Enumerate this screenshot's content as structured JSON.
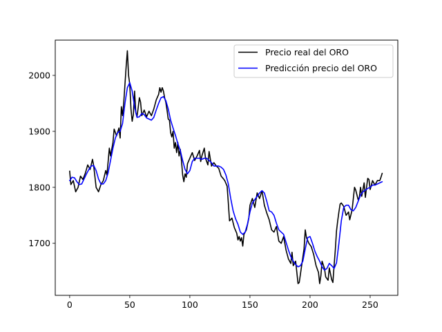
{
  "chart_data": {
    "type": "line",
    "title": "",
    "xlabel": "",
    "ylabel": "",
    "xlim": [
      -12,
      273
    ],
    "ylim": [
      1607,
      2063
    ],
    "x_ticks": [
      0,
      50,
      100,
      150,
      200,
      250
    ],
    "y_ticks": [
      1700,
      1800,
      1900,
      2000
    ],
    "grid": false,
    "legend_position": "top-right",
    "series": [
      {
        "name": "Precio real del ORO",
        "color": "#000000",
        "points": [
          [
            0,
            1829
          ],
          [
            1,
            1805
          ],
          [
            3,
            1812
          ],
          [
            5,
            1792
          ],
          [
            7,
            1800
          ],
          [
            9,
            1820
          ],
          [
            11,
            1814
          ],
          [
            13,
            1825
          ],
          [
            15,
            1840
          ],
          [
            17,
            1832
          ],
          [
            19,
            1850
          ],
          [
            20,
            1838
          ],
          [
            22,
            1800
          ],
          [
            24,
            1792
          ],
          [
            26,
            1805
          ],
          [
            28,
            1812
          ],
          [
            30,
            1830
          ],
          [
            31,
            1822
          ],
          [
            33,
            1870
          ],
          [
            34,
            1856
          ],
          [
            36,
            1880
          ],
          [
            37,
            1904
          ],
          [
            39,
            1892
          ],
          [
            41,
            1906
          ],
          [
            42,
            1888
          ],
          [
            43,
            1944
          ],
          [
            44,
            1928
          ],
          [
            45,
            1952
          ],
          [
            46,
            1984
          ],
          [
            47,
            2016
          ],
          [
            48,
            2044
          ],
          [
            49,
            2000
          ],
          [
            50,
            1984
          ],
          [
            51,
            1940
          ],
          [
            52,
            1918
          ],
          [
            53,
            1930
          ],
          [
            54,
            1972
          ],
          [
            55,
            1934
          ],
          [
            56,
            1926
          ],
          [
            57,
            1942
          ],
          [
            58,
            1960
          ],
          [
            59,
            1952
          ],
          [
            60,
            1928
          ],
          [
            62,
            1938
          ],
          [
            64,
            1926
          ],
          [
            66,
            1936
          ],
          [
            68,
            1928
          ],
          [
            70,
            1940
          ],
          [
            72,
            1956
          ],
          [
            74,
            1966
          ],
          [
            75,
            1978
          ],
          [
            76,
            1970
          ],
          [
            77,
            1978
          ],
          [
            78,
            1972
          ],
          [
            79,
            1960
          ],
          [
            80,
            1952
          ],
          [
            81,
            1938
          ],
          [
            82,
            1922
          ],
          [
            83,
            1920
          ],
          [
            84,
            1898
          ],
          [
            85,
            1890
          ],
          [
            86,
            1900
          ],
          [
            87,
            1870
          ],
          [
            88,
            1880
          ],
          [
            89,
            1862
          ],
          [
            90,
            1880
          ],
          [
            91,
            1856
          ],
          [
            92,
            1868
          ],
          [
            93,
            1848
          ],
          [
            94,
            1822
          ],
          [
            95,
            1810
          ],
          [
            96,
            1824
          ],
          [
            97,
            1818
          ],
          [
            98,
            1842
          ],
          [
            100,
            1852
          ],
          [
            102,
            1862
          ],
          [
            104,
            1848
          ],
          [
            106,
            1856
          ],
          [
            108,
            1866
          ],
          [
            109,
            1846
          ],
          [
            110,
            1856
          ],
          [
            112,
            1870
          ],
          [
            113,
            1852
          ],
          [
            115,
            1840
          ],
          [
            116,
            1864
          ],
          [
            118,
            1838
          ],
          [
            120,
            1844
          ],
          [
            122,
            1838
          ],
          [
            124,
            1834
          ],
          [
            126,
            1820
          ],
          [
            128,
            1815
          ],
          [
            129,
            1812
          ],
          [
            131,
            1802
          ],
          [
            132,
            1772
          ],
          [
            133,
            1740
          ],
          [
            135,
            1745
          ],
          [
            137,
            1728
          ],
          [
            139,
            1718
          ],
          [
            140,
            1706
          ],
          [
            141,
            1712
          ],
          [
            142,
            1704
          ],
          [
            143,
            1710
          ],
          [
            144,
            1695
          ],
          [
            145,
            1716
          ],
          [
            147,
            1724
          ],
          [
            149,
            1744
          ],
          [
            150,
            1768
          ],
          [
            152,
            1780
          ],
          [
            154,
            1764
          ],
          [
            156,
            1790
          ],
          [
            158,
            1780
          ],
          [
            160,
            1794
          ],
          [
            162,
            1768
          ],
          [
            164,
            1754
          ],
          [
            166,
            1742
          ],
          [
            168,
            1724
          ],
          [
            170,
            1720
          ],
          [
            172,
            1730
          ],
          [
            174,
            1704
          ],
          [
            176,
            1700
          ],
          [
            178,
            1712
          ],
          [
            180,
            1688
          ],
          [
            182,
            1672
          ],
          [
            184,
            1664
          ],
          [
            185,
            1684
          ],
          [
            186,
            1660
          ],
          [
            188,
            1668
          ],
          [
            190,
            1628
          ],
          [
            191,
            1630
          ],
          [
            193,
            1660
          ],
          [
            195,
            1690
          ],
          [
            196,
            1724
          ],
          [
            197,
            1710
          ],
          [
            199,
            1700
          ],
          [
            201,
            1694
          ],
          [
            203,
            1680
          ],
          [
            205,
            1660
          ],
          [
            207,
            1648
          ],
          [
            208,
            1628
          ],
          [
            209,
            1642
          ],
          [
            210,
            1668
          ],
          [
            212,
            1655
          ],
          [
            213,
            1640
          ],
          [
            215,
            1634
          ],
          [
            216,
            1656
          ],
          [
            218,
            1635
          ],
          [
            219,
            1630
          ],
          [
            220,
            1660
          ],
          [
            221,
            1688
          ],
          [
            222,
            1722
          ],
          [
            223,
            1740
          ],
          [
            224,
            1756
          ],
          [
            225,
            1770
          ],
          [
            226,
            1772
          ],
          [
            228,
            1766
          ],
          [
            230,
            1750
          ],
          [
            232,
            1756
          ],
          [
            233,
            1742
          ],
          [
            235,
            1760
          ],
          [
            237,
            1800
          ],
          [
            238,
            1795
          ],
          [
            240,
            1778
          ],
          [
            241,
            1782
          ],
          [
            242,
            1800
          ],
          [
            243,
            1784
          ],
          [
            244,
            1796
          ],
          [
            245,
            1808
          ],
          [
            246,
            1782
          ],
          [
            247,
            1800
          ],
          [
            248,
            1816
          ],
          [
            249,
            1814
          ],
          [
            250,
            1796
          ],
          [
            252,
            1812
          ],
          [
            254,
            1804
          ],
          [
            256,
            1812
          ],
          [
            258,
            1812
          ],
          [
            259,
            1818
          ],
          [
            260,
            1825
          ]
        ]
      },
      {
        "name": "Predicción precio del ORO",
        "color": "#0000ff",
        "points": [
          [
            0,
            1812
          ],
          [
            2,
            1818
          ],
          [
            4,
            1817
          ],
          [
            6,
            1810
          ],
          [
            8,
            1805
          ],
          [
            10,
            1806
          ],
          [
            12,
            1815
          ],
          [
            14,
            1824
          ],
          [
            16,
            1832
          ],
          [
            18,
            1838
          ],
          [
            20,
            1839
          ],
          [
            22,
            1830
          ],
          [
            24,
            1815
          ],
          [
            26,
            1806
          ],
          [
            28,
            1806
          ],
          [
            30,
            1812
          ],
          [
            32,
            1826
          ],
          [
            34,
            1848
          ],
          [
            36,
            1870
          ],
          [
            38,
            1888
          ],
          [
            40,
            1898
          ],
          [
            42,
            1900
          ],
          [
            44,
            1914
          ],
          [
            46,
            1950
          ],
          [
            48,
            1978
          ],
          [
            50,
            1987
          ],
          [
            52,
            1972
          ],
          [
            54,
            1944
          ],
          [
            56,
            1925
          ],
          [
            58,
            1926
          ],
          [
            60,
            1932
          ],
          [
            62,
            1930
          ],
          [
            64,
            1924
          ],
          [
            66,
            1922
          ],
          [
            68,
            1920
          ],
          [
            70,
            1925
          ],
          [
            72,
            1938
          ],
          [
            74,
            1950
          ],
          [
            76,
            1960
          ],
          [
            78,
            1962
          ],
          [
            80,
            1955
          ],
          [
            82,
            1940
          ],
          [
            84,
            1920
          ],
          [
            86,
            1906
          ],
          [
            88,
            1893
          ],
          [
            90,
            1878
          ],
          [
            92,
            1866
          ],
          [
            94,
            1848
          ],
          [
            96,
            1832
          ],
          [
            98,
            1824
          ],
          [
            100,
            1830
          ],
          [
            102,
            1846
          ],
          [
            104,
            1852
          ],
          [
            106,
            1852
          ],
          [
            108,
            1852
          ],
          [
            110,
            1850
          ],
          [
            112,
            1852
          ],
          [
            114,
            1852
          ],
          [
            116,
            1848
          ],
          [
            118,
            1844
          ],
          [
            120,
            1838
          ],
          [
            122,
            1838
          ],
          [
            124,
            1838
          ],
          [
            126,
            1836
          ],
          [
            128,
            1832
          ],
          [
            130,
            1822
          ],
          [
            132,
            1806
          ],
          [
            134,
            1780
          ],
          [
            136,
            1758
          ],
          [
            138,
            1744
          ],
          [
            140,
            1734
          ],
          [
            142,
            1720
          ],
          [
            144,
            1716
          ],
          [
            146,
            1720
          ],
          [
            148,
            1735
          ],
          [
            150,
            1756
          ],
          [
            152,
            1772
          ],
          [
            154,
            1778
          ],
          [
            156,
            1784
          ],
          [
            158,
            1790
          ],
          [
            160,
            1794
          ],
          [
            162,
            1790
          ],
          [
            164,
            1775
          ],
          [
            166,
            1758
          ],
          [
            168,
            1756
          ],
          [
            170,
            1750
          ],
          [
            172,
            1736
          ],
          [
            174,
            1724
          ],
          [
            176,
            1720
          ],
          [
            178,
            1716
          ],
          [
            180,
            1702
          ],
          [
            182,
            1688
          ],
          [
            184,
            1676
          ],
          [
            186,
            1668
          ],
          [
            188,
            1662
          ],
          [
            190,
            1658
          ],
          [
            192,
            1660
          ],
          [
            194,
            1668
          ],
          [
            196,
            1690
          ],
          [
            198,
            1710
          ],
          [
            200,
            1712
          ],
          [
            202,
            1700
          ],
          [
            204,
            1686
          ],
          [
            206,
            1676
          ],
          [
            208,
            1668
          ],
          [
            210,
            1658
          ],
          [
            212,
            1652
          ],
          [
            214,
            1655
          ],
          [
            216,
            1664
          ],
          [
            218,
            1660
          ],
          [
            220,
            1655
          ],
          [
            222,
            1665
          ],
          [
            224,
            1700
          ],
          [
            226,
            1740
          ],
          [
            228,
            1764
          ],
          [
            230,
            1768
          ],
          [
            232,
            1768
          ],
          [
            234,
            1760
          ],
          [
            236,
            1758
          ],
          [
            238,
            1764
          ],
          [
            240,
            1775
          ],
          [
            242,
            1786
          ],
          [
            244,
            1792
          ],
          [
            246,
            1795
          ],
          [
            248,
            1798
          ],
          [
            250,
            1800
          ],
          [
            252,
            1804
          ],
          [
            254,
            1804
          ],
          [
            256,
            1806
          ],
          [
            258,
            1808
          ],
          [
            260,
            1810
          ]
        ]
      }
    ]
  }
}
